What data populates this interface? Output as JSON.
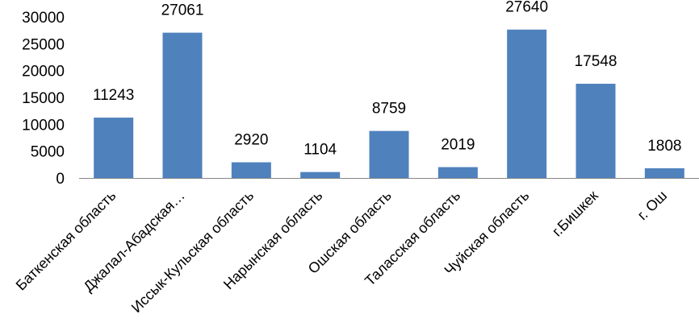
{
  "chart_data": {
    "type": "bar",
    "categories": [
      "Баткенская область",
      "Джалал-Абадская…",
      "Иссык-Кульская область",
      "Нарынская область",
      "Ошская область",
      "Таласская область",
      "Чуйская область",
      "г.Бишкек",
      "г. Ош"
    ],
    "values": [
      11243,
      27061,
      2920,
      1104,
      8759,
      2019,
      27640,
      17548,
      1808
    ],
    "data_labels": [
      "11243",
      "27061",
      "2920",
      "1104",
      "8759",
      "2019",
      "27640",
      "17548",
      "1808"
    ],
    "y_ticks": [
      "0",
      "5000",
      "10000",
      "15000",
      "20000",
      "25000",
      "30000"
    ],
    "ylim": [
      0,
      30000
    ],
    "grid": false,
    "legend": "none",
    "bar_color": "#4f81bd",
    "axis_color": "#868686"
  }
}
